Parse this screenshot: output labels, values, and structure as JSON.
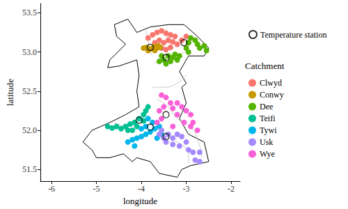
{
  "chart_data": {
    "type": "scatter",
    "x_label": "longitude",
    "y_label": "latitude",
    "xlim": [
      -6.25,
      -1.8
    ],
    "ylim": [
      51.35,
      53.62
    ],
    "xticks": [
      -6,
      -5,
      -4,
      -3,
      -2
    ],
    "yticks": [
      51.5,
      52.0,
      52.5,
      53.0,
      53.5
    ],
    "grid": false,
    "legend": "right",
    "legend_title": "Catchment",
    "outline": [
      [
        -3.05,
        53.35
      ],
      [
        -3.4,
        53.35
      ],
      [
        -3.8,
        53.32
      ],
      [
        -4.1,
        53.25
      ],
      [
        -4.3,
        53.42
      ],
      [
        -4.6,
        53.35
      ],
      [
        -4.55,
        53.2
      ],
      [
        -4.35,
        53.1
      ],
      [
        -4.7,
        52.9
      ],
      [
        -4.75,
        52.8
      ],
      [
        -4.5,
        52.82
      ],
      [
        -4.1,
        52.9
      ],
      [
        -4.05,
        52.7
      ],
      [
        -4.1,
        52.5
      ],
      [
        -4.05,
        52.3
      ],
      [
        -4.35,
        52.2
      ],
      [
        -4.7,
        52.1
      ],
      [
        -5.1,
        52.0
      ],
      [
        -5.3,
        51.85
      ],
      [
        -5.1,
        51.75
      ],
      [
        -5.0,
        51.65
      ],
      [
        -4.7,
        51.65
      ],
      [
        -4.4,
        51.7
      ],
      [
        -4.2,
        51.6
      ],
      [
        -4.1,
        51.65
      ],
      [
        -3.8,
        51.6
      ],
      [
        -3.6,
        51.45
      ],
      [
        -3.2,
        51.4
      ],
      [
        -3.1,
        51.5
      ],
      [
        -2.9,
        51.55
      ],
      [
        -2.5,
        51.6
      ],
      [
        -2.6,
        51.85
      ],
      [
        -2.95,
        51.95
      ],
      [
        -3.05,
        52.05
      ],
      [
        -3.15,
        52.15
      ],
      [
        -3.0,
        52.35
      ],
      [
        -3.1,
        52.55
      ],
      [
        -3.0,
        52.6
      ],
      [
        -3.15,
        52.75
      ],
      [
        -2.95,
        52.95
      ],
      [
        -2.6,
        52.95
      ],
      [
        -2.5,
        53.05
      ],
      [
        -2.75,
        53.2
      ],
      [
        -3.05,
        53.35
      ]
    ],
    "rivers": [
      [
        [
          -3.9,
          53.28
        ],
        [
          -3.85,
          53.15
        ],
        [
          -3.8,
          53.0
        ],
        [
          -3.75,
          52.95
        ]
      ],
      [
        [
          -3.45,
          53.3
        ],
        [
          -3.4,
          53.15
        ],
        [
          -3.3,
          53.05
        ]
      ],
      [
        [
          -3.7,
          52.85
        ],
        [
          -3.4,
          52.95
        ],
        [
          -3.1,
          52.98
        ],
        [
          -2.9,
          53.1
        ],
        [
          -2.75,
          53.18
        ]
      ],
      [
        [
          -4.6,
          52.1
        ],
        [
          -4.3,
          52.05
        ],
        [
          -4.0,
          52.15
        ],
        [
          -3.85,
          52.25
        ]
      ],
      [
        [
          -4.35,
          51.85
        ],
        [
          -4.0,
          51.9
        ],
        [
          -3.75,
          52.0
        ],
        [
          -3.6,
          52.1
        ]
      ],
      [
        [
          -3.65,
          52.4
        ],
        [
          -3.4,
          52.3
        ],
        [
          -3.2,
          52.15
        ],
        [
          -2.9,
          52.05
        ],
        [
          -2.7,
          51.8
        ],
        [
          -2.65,
          51.65
        ]
      ],
      [
        [
          -3.55,
          51.95
        ],
        [
          -3.2,
          51.85
        ],
        [
          -2.95,
          51.7
        ],
        [
          -2.95,
          51.58
        ]
      ],
      [
        [
          -3.75,
          52.55
        ],
        [
          -3.5,
          52.55
        ],
        [
          -3.2,
          52.6
        ],
        [
          -3.0,
          52.7
        ]
      ]
    ],
    "series": [
      {
        "name": "Clwyd",
        "color": "#F8766D",
        "marker": "circle",
        "values": [
          [
            -3.85,
            53.18
          ],
          [
            -3.75,
            53.22
          ],
          [
            -3.65,
            53.25
          ],
          [
            -3.55,
            53.27
          ],
          [
            -3.45,
            53.24
          ],
          [
            -3.35,
            53.22
          ],
          [
            -3.25,
            53.2
          ],
          [
            -3.7,
            53.12
          ],
          [
            -3.6,
            53.15
          ],
          [
            -3.5,
            53.12
          ],
          [
            -3.4,
            53.15
          ],
          [
            -3.3,
            53.13
          ],
          [
            -3.2,
            53.1
          ],
          [
            -3.55,
            53.05
          ],
          [
            -3.45,
            53.03
          ],
          [
            -3.35,
            53.06
          ],
          [
            -3.0,
            53.2
          ],
          [
            -2.95,
            53.12
          ],
          [
            -3.1,
            53.15
          ]
        ]
      },
      {
        "name": "Conwy",
        "color": "#C49A00",
        "marker": "circle",
        "values": [
          [
            -3.95,
            53.05
          ],
          [
            -3.88,
            53.06
          ],
          [
            -3.8,
            53.04
          ],
          [
            -3.72,
            53.07
          ],
          [
            -3.65,
            53.05
          ],
          [
            -3.58,
            53.06
          ],
          [
            -3.85,
            53.02
          ],
          [
            -3.7,
            53.02
          ],
          [
            -3.62,
            53.08
          ]
        ]
      },
      {
        "name": "Dee",
        "color": "#53B400",
        "marker": "circle",
        "values": [
          [
            -3.55,
            52.95
          ],
          [
            -3.5,
            52.9
          ],
          [
            -3.4,
            52.95
          ],
          [
            -3.35,
            52.88
          ],
          [
            -3.3,
            52.93
          ],
          [
            -3.25,
            52.97
          ],
          [
            -3.2,
            52.9
          ],
          [
            -3.15,
            52.95
          ],
          [
            -3.6,
            52.88
          ],
          [
            -3.45,
            52.85
          ],
          [
            -3.0,
            53.05
          ],
          [
            -2.95,
            53.0
          ],
          [
            -2.9,
            53.18
          ],
          [
            -2.8,
            53.15
          ],
          [
            -2.75,
            53.1
          ],
          [
            -2.7,
            53.05
          ],
          [
            -2.6,
            53.08
          ],
          [
            -2.55,
            53.02
          ],
          [
            -2.95,
            53.12
          ]
        ]
      },
      {
        "name": "Teifi",
        "color": "#00C094",
        "marker": "circle",
        "values": [
          [
            -4.75,
            52.05
          ],
          [
            -4.65,
            52.03
          ],
          [
            -4.55,
            52.05
          ],
          [
            -4.45,
            52.02
          ],
          [
            -4.35,
            52.05
          ],
          [
            -4.25,
            52.08
          ],
          [
            -4.15,
            52.1
          ],
          [
            -4.05,
            52.15
          ],
          [
            -3.95,
            52.2
          ],
          [
            -3.9,
            52.25
          ],
          [
            -3.85,
            52.3
          ],
          [
            -4.2,
            52.0
          ],
          [
            -4.3,
            52.0
          ],
          [
            -3.95,
            52.12
          ],
          [
            -4.1,
            52.05
          ]
        ]
      },
      {
        "name": "Tywi",
        "color": "#00B6EB",
        "marker": "circle",
        "values": [
          [
            -4.3,
            51.85
          ],
          [
            -4.2,
            51.88
          ],
          [
            -4.1,
            51.9
          ],
          [
            -4.0,
            51.92
          ],
          [
            -3.9,
            51.95
          ],
          [
            -3.8,
            51.98
          ],
          [
            -3.7,
            52.02
          ],
          [
            -3.6,
            52.05
          ],
          [
            -3.9,
            52.05
          ],
          [
            -4.0,
            52.02
          ],
          [
            -3.75,
            52.1
          ],
          [
            -3.85,
            52.15
          ],
          [
            -3.65,
            51.9
          ],
          [
            -4.15,
            51.8
          ],
          [
            -3.55,
            51.95
          ]
        ]
      },
      {
        "name": "Usk",
        "color": "#A58AFF",
        "marker": "circle",
        "values": [
          [
            -3.6,
            51.95
          ],
          [
            -3.5,
            51.9
          ],
          [
            -3.4,
            51.95
          ],
          [
            -3.3,
            51.9
          ],
          [
            -3.2,
            51.95
          ],
          [
            -3.1,
            51.92
          ],
          [
            -3.0,
            51.85
          ],
          [
            -3.45,
            51.85
          ],
          [
            -3.3,
            51.82
          ],
          [
            -3.15,
            51.8
          ],
          [
            -2.95,
            51.75
          ],
          [
            -2.85,
            51.72
          ],
          [
            -2.7,
            51.72
          ],
          [
            -2.8,
            51.62
          ],
          [
            -2.7,
            51.6
          ],
          [
            -3.55,
            52.0
          ]
        ]
      },
      {
        "name": "Wye",
        "color": "#FB61D7",
        "marker": "circle",
        "values": [
          [
            -3.55,
            52.45
          ],
          [
            -3.45,
            52.42
          ],
          [
            -3.35,
            52.35
          ],
          [
            -3.3,
            52.28
          ],
          [
            -3.5,
            52.3
          ],
          [
            -3.2,
            52.35
          ],
          [
            -3.1,
            52.3
          ],
          [
            -3.0,
            52.25
          ],
          [
            -2.9,
            52.2
          ],
          [
            -2.85,
            52.1
          ],
          [
            -2.9,
            52.05
          ],
          [
            -3.6,
            52.25
          ],
          [
            -3.55,
            52.15
          ],
          [
            -3.2,
            52.2
          ],
          [
            -3.05,
            52.1
          ],
          [
            -3.3,
            52.05
          ],
          [
            -3.65,
            52.1
          ],
          [
            -2.75,
            52.0
          ]
        ]
      },
      {
        "name": "Temperature station",
        "color": "#000000",
        "marker": "open circle",
        "values": [
          [
            -3.05,
            53.12
          ],
          [
            -3.8,
            53.06
          ],
          [
            -3.45,
            52.93
          ],
          [
            -4.05,
            52.13
          ],
          [
            -3.8,
            52.04
          ],
          [
            -3.45,
            51.92
          ],
          [
            -3.45,
            52.2
          ]
        ]
      }
    ]
  }
}
